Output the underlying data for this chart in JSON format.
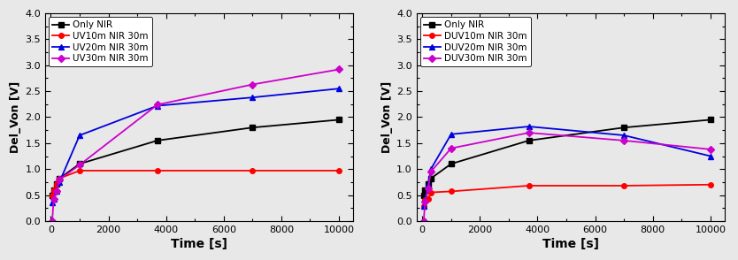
{
  "left": {
    "xlabel": "Time [s]",
    "ylabel": "Del_Von [V]",
    "xlim": [
      -200,
      10500
    ],
    "ylim": [
      0.0,
      4.0
    ],
    "xticks": [
      0,
      2000,
      4000,
      6000,
      8000,
      10000
    ],
    "yticks": [
      0.0,
      0.5,
      1.0,
      1.5,
      2.0,
      2.5,
      3.0,
      3.5,
      4.0
    ],
    "series": [
      {
        "label": "Only NIR",
        "color": "#000000",
        "marker": "s",
        "x": [
          50,
          100,
          200,
          300,
          1000,
          3700,
          7000,
          10000
        ],
        "y": [
          0.5,
          0.6,
          0.72,
          0.82,
          1.1,
          1.55,
          1.8,
          1.95
        ]
      },
      {
        "label": "UV10m NIR 30m",
        "color": "#ff0000",
        "marker": "o",
        "x": [
          50,
          100,
          200,
          300,
          1000,
          3700,
          7000,
          10000
        ],
        "y": [
          0.5,
          0.6,
          0.72,
          0.82,
          0.97,
          0.97,
          0.97,
          0.97
        ]
      },
      {
        "label": "UV20m NIR 30m",
        "color": "#0000dd",
        "marker": "^",
        "x": [
          50,
          100,
          200,
          300,
          1000,
          3700,
          7000,
          10000
        ],
        "y": [
          0.35,
          0.42,
          0.58,
          0.75,
          1.65,
          2.22,
          2.38,
          2.55
        ]
      },
      {
        "label": "UV30m NIR 30m",
        "color": "#cc00cc",
        "marker": "D",
        "x": [
          50,
          100,
          200,
          300,
          1000,
          3700,
          7000,
          10000
        ],
        "y": [
          0.0,
          0.42,
          0.58,
          0.8,
          1.08,
          2.24,
          2.63,
          2.92
        ]
      }
    ]
  },
  "right": {
    "xlabel": "Time [s]",
    "ylabel": "Del_Von [V]",
    "xlim": [
      -200,
      10500
    ],
    "ylim": [
      0.0,
      4.0
    ],
    "xticks": [
      0,
      2000,
      4000,
      6000,
      8000,
      10000
    ],
    "yticks": [
      0.0,
      0.5,
      1.0,
      1.5,
      2.0,
      2.5,
      3.0,
      3.5,
      4.0
    ],
    "series": [
      {
        "label": "Only NIR",
        "color": "#000000",
        "marker": "s",
        "x": [
          50,
          100,
          200,
          300,
          1000,
          3700,
          7000,
          10000
        ],
        "y": [
          0.5,
          0.6,
          0.72,
          0.82,
          1.1,
          1.55,
          1.8,
          1.95
        ]
      },
      {
        "label": "DUV10m NIR 30m",
        "color": "#ff0000",
        "marker": "o",
        "x": [
          50,
          100,
          200,
          300,
          1000,
          3700,
          7000,
          10000
        ],
        "y": [
          0.28,
          0.4,
          0.43,
          0.55,
          0.57,
          0.68,
          0.68,
          0.7
        ]
      },
      {
        "label": "DUV20m NIR 30m",
        "color": "#0000dd",
        "marker": "^",
        "x": [
          50,
          100,
          200,
          300,
          1000,
          3700,
          7000,
          10000
        ],
        "y": [
          0.28,
          0.4,
          0.7,
          1.0,
          1.67,
          1.82,
          1.65,
          1.25
        ]
      },
      {
        "label": "DUV30m NIR 30m",
        "color": "#cc00cc",
        "marker": "D",
        "x": [
          50,
          100,
          200,
          300,
          1000,
          3700,
          7000,
          10000
        ],
        "y": [
          0.0,
          0.38,
          0.62,
          0.95,
          1.4,
          1.7,
          1.55,
          1.38
        ]
      }
    ]
  },
  "fig_width": 8.34,
  "fig_height": 2.94,
  "dpi": 100,
  "bg_color": "#e8e8e8"
}
